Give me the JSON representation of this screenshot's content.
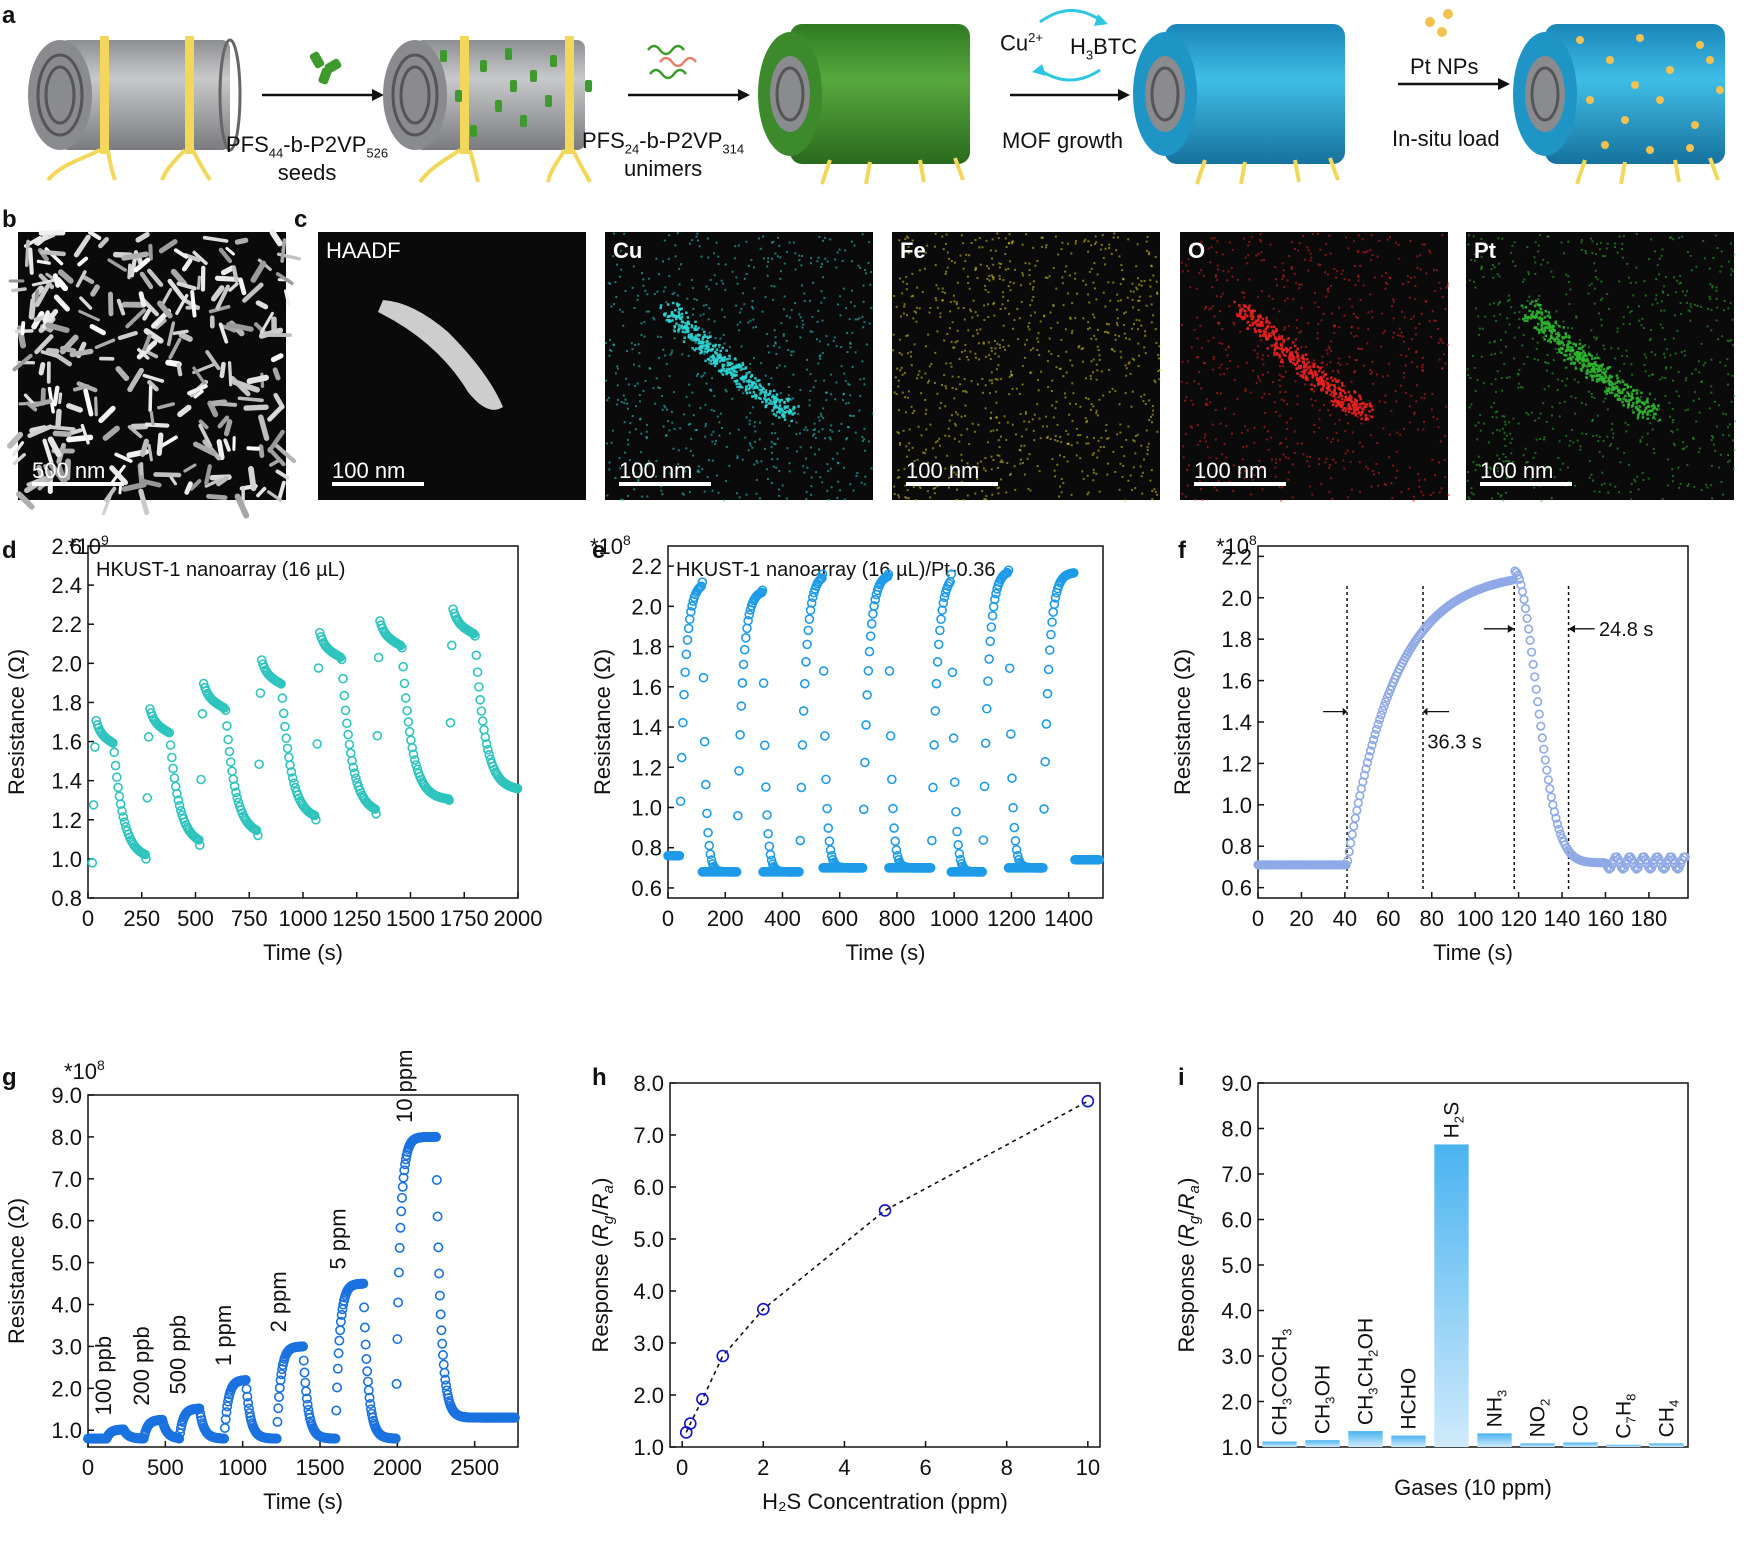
{
  "panel_a": {
    "letter": "a",
    "seeds_line1_pre": "PFS",
    "seeds_line1_sub1": "44",
    "seeds_line1_mid": "-b-P2VP",
    "seeds_line1_sub2": "526",
    "seeds_line2": "seeds",
    "unimers_line1_pre": "PFS",
    "unimers_line1_sub1": "24",
    "unimers_line1_mid": "-b-P2VP",
    "unimers_line1_sub2": "314",
    "unimers_line2": "unimers",
    "cu": "Cu",
    "cu_sup": "2+",
    "h3btc_pre": "H",
    "h3btc_sub": "3",
    "h3btc_post": "BTC",
    "mof_growth": "MOF growth",
    "pt_nps": "Pt NPs",
    "in_situ": "In-situ load",
    "colors": {
      "cylinder_gray": "#a9aaad",
      "wire_yellow": "#f2d85a",
      "rods_green": "#3f8f2e",
      "rods_blue": "#1aa3d1",
      "cu_arrow": "#2ec7e0",
      "pt_gold": "#f2c150"
    }
  },
  "panel_b": {
    "letter": "b",
    "scale_label": "500 nm"
  },
  "panel_c": {
    "letter": "c",
    "tiles": [
      {
        "label": "HAADF",
        "scale_label": "100 nm",
        "color": "#e8e8e8"
      },
      {
        "label": "Cu",
        "scale_label": "100 nm",
        "color": "#2fd4d4"
      },
      {
        "label": "Fe",
        "scale_label": "100 nm",
        "color": "#d9d020"
      },
      {
        "label": "O",
        "scale_label": "100 nm",
        "color": "#e82020"
      },
      {
        "label": "Pt",
        "scale_label": "100 nm",
        "color": "#2fb52f"
      }
    ]
  },
  "chart_data": [
    {
      "id": "d",
      "letter": "d",
      "type": "scatter",
      "multiplier_base": "*10",
      "multiplier_exp": "9",
      "annotation": "HKUST-1 nanoarray (16 µL)",
      "xlabel": "Time (s)",
      "ylabel": "Resistance (Ω)",
      "xlim": [
        0,
        2000
      ],
      "ylim": [
        0.8,
        2.6
      ],
      "xticks": [
        "0",
        "250",
        "500",
        "750",
        "1000",
        "1250",
        "1500",
        "1750",
        "2000"
      ],
      "yticks": [
        "0.8",
        "1.0",
        "1.2",
        "1.4",
        "1.6",
        "1.8",
        "2.0",
        "2.2",
        "2.4",
        "2.6"
      ],
      "color": "#2ec4be",
      "cycles": [
        {
          "on": 20,
          "off": 120,
          "base": 0.98,
          "peak": 1.72,
          "end": 1.0
        },
        {
          "on": 270,
          "off": 380,
          "base": 1.0,
          "peak": 1.78,
          "end": 1.07
        },
        {
          "on": 520,
          "off": 640,
          "base": 1.07,
          "peak": 1.91,
          "end": 1.12
        },
        {
          "on": 790,
          "off": 900,
          "base": 1.12,
          "peak": 2.03,
          "end": 1.2
        },
        {
          "on": 1060,
          "off": 1180,
          "base": 1.2,
          "peak": 2.17,
          "end": 1.23
        },
        {
          "on": 1340,
          "off": 1460,
          "base": 1.23,
          "peak": 2.23,
          "end": 1.3
        },
        {
          "on": 1680,
          "off": 1800,
          "base": 1.3,
          "peak": 2.29,
          "end": 1.35
        }
      ]
    },
    {
      "id": "e",
      "letter": "e",
      "type": "scatter",
      "multiplier_base": "*10",
      "multiplier_exp": "8",
      "annotation": "HKUST-1 nanoarray (16 µL)/Pt-0.36",
      "xlabel": "Time (s)",
      "ylabel": "Resistance (Ω)",
      "xlim": [
        0,
        1520
      ],
      "ylim": [
        0.55,
        2.3
      ],
      "xticks": [
        "0",
        "200",
        "400",
        "600",
        "800",
        "1000",
        "1200",
        "1400"
      ],
      "xtick_values": [
        0,
        200,
        400,
        600,
        800,
        1000,
        1200,
        1400
      ],
      "yticks": [
        "0.6",
        "0.8",
        "1.0",
        "1.2",
        "1.4",
        "1.6",
        "1.8",
        "2.0",
        "2.2"
      ],
      "ytick_values": [
        0.6,
        0.8,
        1.0,
        1.2,
        1.4,
        1.6,
        1.8,
        2.0,
        2.2
      ],
      "color": "#1e9be8",
      "cycles": [
        {
          "on": 40,
          "off": 120,
          "base": 0.76,
          "peak": 2.12,
          "end": 0.68
        },
        {
          "on": 240,
          "off": 330,
          "base": 0.68,
          "peak": 2.08,
          "end": 0.68
        },
        {
          "on": 460,
          "off": 540,
          "base": 0.68,
          "peak": 2.16,
          "end": 0.7
        },
        {
          "on": 680,
          "off": 770,
          "base": 0.7,
          "peak": 2.16,
          "end": 0.7
        },
        {
          "on": 920,
          "off": 990,
          "base": 0.68,
          "peak": 2.16,
          "end": 0.68
        },
        {
          "on": 1100,
          "off": 1190,
          "base": 0.68,
          "peak": 2.18,
          "end": 0.7
        },
        {
          "on": 1310,
          "off": 1420,
          "base": 0.7,
          "peak": 2.17,
          "end": 0.74
        }
      ]
    },
    {
      "id": "f",
      "letter": "f",
      "type": "scatter",
      "multiplier_base": "*10",
      "multiplier_exp": "8",
      "xlabel": "Time (s)",
      "ylabel": "Resistance (Ω)",
      "xlim": [
        0,
        198
      ],
      "ylim": [
        0.55,
        2.25
      ],
      "xticks": [
        "0",
        "20",
        "40",
        "60",
        "80",
        "100",
        "120",
        "140",
        "160",
        "180"
      ],
      "xtick_values": [
        0,
        20,
        40,
        60,
        80,
        100,
        120,
        140,
        160,
        180
      ],
      "yticks": [
        "0.6",
        "0.8",
        "1.0",
        "1.2",
        "1.4",
        "1.6",
        "1.8",
        "2.0",
        "2.2"
      ],
      "ytick_values": [
        0.6,
        0.8,
        1.0,
        1.2,
        1.4,
        1.6,
        1.8,
        2.0,
        2.2
      ],
      "color": "#8fa9e6",
      "dashed_lines_x": [
        41,
        76,
        118,
        143
      ],
      "response_time": "36.3 s",
      "recovery_time": "24.8 s",
      "baseline": 0.71,
      "peak": 2.13,
      "on": 41,
      "off": 118,
      "end": 0.72
    },
    {
      "id": "g",
      "letter": "g",
      "type": "scatter",
      "multiplier_base": "*10",
      "multiplier_exp": "8",
      "xlabel": "Time (s)",
      "ylabel": "Resistance (Ω)",
      "xlim": [
        0,
        2780
      ],
      "ylim": [
        0.6,
        9.0
      ],
      "xticks": [
        "0",
        "500",
        "1000",
        "1500",
        "2000",
        "2500"
      ],
      "xtick_values": [
        0,
        500,
        1000,
        1500,
        2000,
        2500
      ],
      "yticks": [
        "1.0",
        "2.0",
        "3.0",
        "4.0",
        "5.0",
        "6.0",
        "7.0",
        "8.0",
        "9.0"
      ],
      "ytick_values": [
        1,
        2,
        3,
        4,
        5,
        6,
        7,
        8,
        9
      ],
      "color": "#1a72e0",
      "steps": [
        {
          "label": "100 ppb",
          "on": 120,
          "off": 230,
          "peak": 1.02
        },
        {
          "label": "200 ppb",
          "on": 360,
          "off": 480,
          "peak": 1.25
        },
        {
          "label": "500 ppb",
          "on": 590,
          "off": 720,
          "peak": 1.52
        },
        {
          "label": "1 ppm",
          "on": 880,
          "off": 1020,
          "peak": 2.2
        },
        {
          "label": "2 ppm",
          "on": 1220,
          "off": 1390,
          "peak": 3.0
        },
        {
          "label": "5 ppm",
          "on": 1600,
          "off": 1780,
          "peak": 4.5
        },
        {
          "label": "10 ppm",
          "on": 1990,
          "off": 2250,
          "peak": 8.0
        }
      ],
      "baseline": 0.8,
      "tail": 1.3
    },
    {
      "id": "h",
      "letter": "h",
      "type": "scatter",
      "xlabel": "H₂S Concentration (ppm)",
      "ylabel_pre": "Response (",
      "ylabel_r": "R",
      "ylabel_g": "g",
      "ylabel_slash": "/",
      "ylabel_a": "a",
      "ylabel_post": ")",
      "xlim": [
        -0.3,
        10.3
      ],
      "ylim": [
        1.0,
        8.0
      ],
      "xticks": [
        "0",
        "2",
        "4",
        "6",
        "8",
        "10"
      ],
      "xtick_values": [
        0,
        2,
        4,
        6,
        8,
        10
      ],
      "yticks": [
        "1.0",
        "2.0",
        "3.0",
        "4.0",
        "5.0",
        "6.0",
        "7.0",
        "8.0"
      ],
      "ytick_values": [
        1,
        2,
        3,
        4,
        5,
        6,
        7,
        8
      ],
      "x": [
        0.1,
        0.2,
        0.5,
        1,
        2,
        5,
        10
      ],
      "y": [
        1.28,
        1.45,
        1.92,
        2.75,
        3.65,
        5.55,
        7.65
      ],
      "color": "#1010d0"
    },
    {
      "id": "i",
      "letter": "i",
      "type": "bar",
      "xlabel": "Gases (10 ppm)",
      "ylabel_pre": "Response (",
      "ylabel_r": "R",
      "ylabel_g": "g",
      "ylabel_slash": "/",
      "ylabel_a": "a",
      "ylabel_post": ")",
      "ylim": [
        1.0,
        9.0
      ],
      "yticks": [
        "1.0",
        "2.0",
        "3.0",
        "4.0",
        "5.0",
        "6.0",
        "7.0",
        "8.0",
        "9.0"
      ],
      "ytick_values": [
        1,
        2,
        3,
        4,
        5,
        6,
        7,
        8,
        9
      ],
      "categories": [
        {
          "base": "CH",
          "parts": [
            [
              "CH",
              "3"
            ],
            [
              "COCH",
              "3"
            ]
          ]
        },
        {
          "parts": [
            [
              "CH",
              "3"
            ],
            [
              "OH",
              ""
            ]
          ]
        },
        {
          "parts": [
            [
              "CH",
              "3"
            ],
            [
              "CH",
              "2"
            ],
            [
              "OH",
              ""
            ]
          ]
        },
        {
          "parts": [
            [
              "HCHO",
              ""
            ]
          ]
        },
        {
          "parts": [
            [
              "H",
              "2"
            ],
            [
              "S",
              ""
            ]
          ]
        },
        {
          "parts": [
            [
              "NH",
              "3"
            ]
          ]
        },
        {
          "parts": [
            [
              "NO",
              "2"
            ]
          ]
        },
        {
          "parts": [
            [
              "CO",
              ""
            ]
          ]
        },
        {
          "parts": [
            [
              "C",
              "7"
            ],
            [
              "H",
              "8"
            ]
          ]
        },
        {
          "parts": [
            [
              "CH",
              "4"
            ]
          ]
        }
      ],
      "category_names": [
        "CH3COCH3",
        "CH3OH",
        "CH3CH2OH",
        "HCHO",
        "H2S",
        "NH3",
        "NO2",
        "CO",
        "C7H8",
        "CH4"
      ],
      "values": [
        1.12,
        1.15,
        1.35,
        1.25,
        7.65,
        1.3,
        1.08,
        1.1,
        1.05,
        1.08
      ],
      "color_top": "#4ab3f0",
      "color_bottom": "#cfeafb"
    }
  ]
}
